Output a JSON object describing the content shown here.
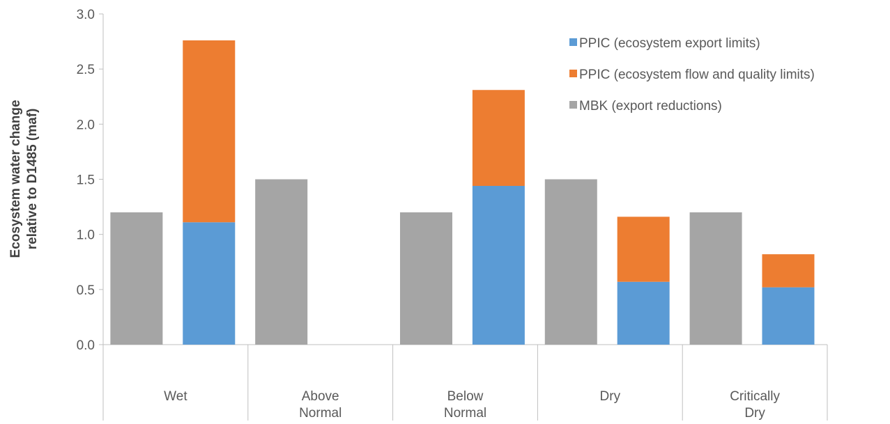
{
  "chart_data": {
    "type": "bar",
    "ylabel_lines": [
      "Ecosystem water change",
      "relative to D1485 (maf)"
    ],
    "ylim": [
      0,
      3
    ],
    "yticks": [
      "0.0",
      "0.5",
      "1.0",
      "1.5",
      "2.0",
      "2.5",
      "3.0"
    ],
    "grid": false,
    "legend_position": "top-right",
    "categories": [
      {
        "lines": [
          "Wet"
        ]
      },
      {
        "lines": [
          "Above",
          "Normal"
        ]
      },
      {
        "lines": [
          "Below",
          "Normal"
        ]
      },
      {
        "lines": [
          "Dry"
        ]
      },
      {
        "lines": [
          "Critically",
          "Dry"
        ]
      }
    ],
    "series": [
      {
        "name": "MBK (export reductions)",
        "color": "#a5a5a5",
        "values": [
          1.2,
          1.5,
          1.2,
          1.5,
          1.2
        ]
      },
      {
        "name": "PPIC (ecosystem export limits)",
        "color": "#5b9bd5",
        "values": [
          1.11,
          null,
          1.44,
          0.57,
          0.52
        ]
      },
      {
        "name": "PPIC (ecosystem flow and quality limits)",
        "color": "#ed7d31",
        "values": [
          1.65,
          null,
          0.87,
          0.59,
          0.3
        ]
      }
    ],
    "legend_order": [
      1,
      2,
      0
    ]
  }
}
